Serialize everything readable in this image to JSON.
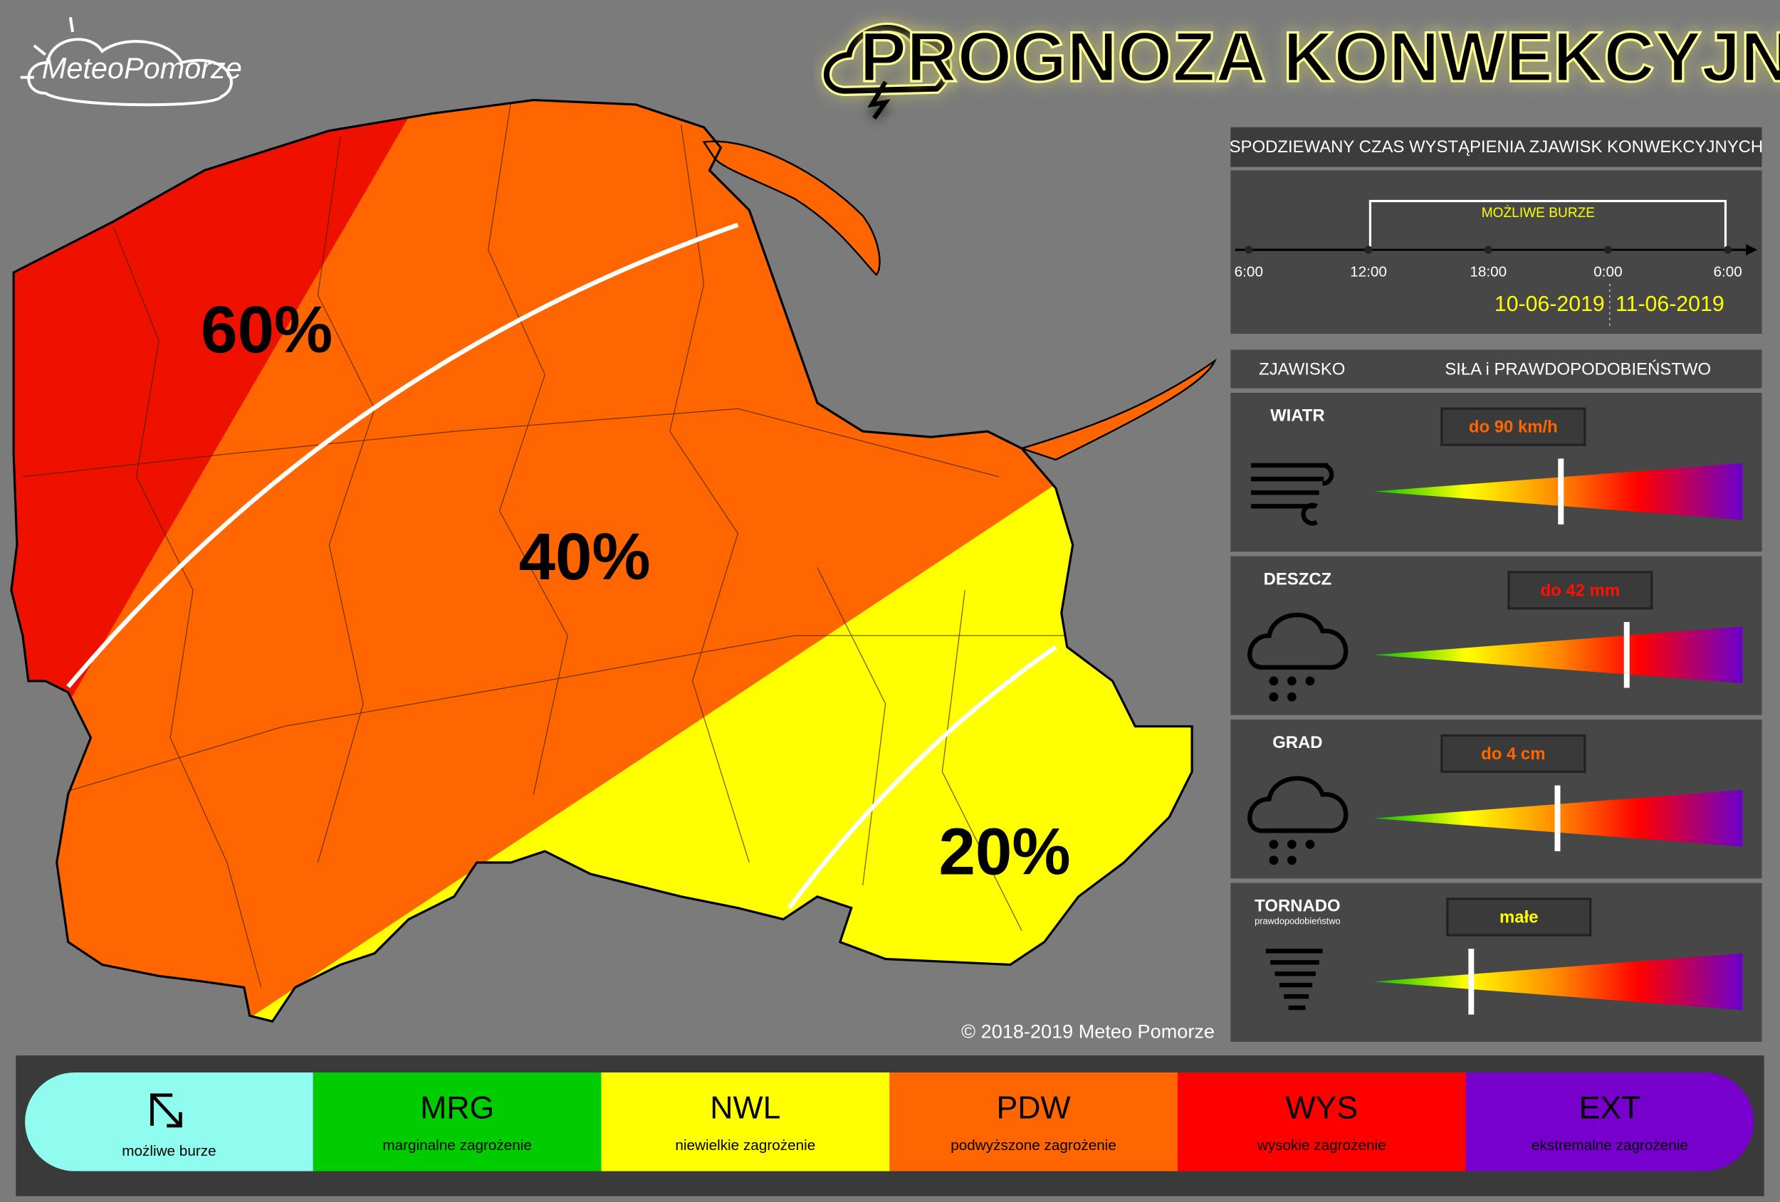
{
  "header": {
    "brand": "MeteoPomorze",
    "title": "PROGNOZA KONWEKCYJNA"
  },
  "map": {
    "labels": [
      "60%",
      "40%",
      "20%"
    ],
    "copyright": "© 2018-2019  Meteo Pomorze"
  },
  "timeline": {
    "title": "SPODZIEWANY CZAS WYSTĄPIENIA ZJAWISK KONWEKCYJNYCH",
    "period": "MOŻLIWE BURZE",
    "times": [
      "6:00",
      "12:00",
      "18:00",
      "0:00",
      "6:00"
    ],
    "dates": [
      "10-06-2019",
      "11-06-2019"
    ]
  },
  "phenomena": {
    "headers": [
      "ZJAWISKO",
      "SIŁA i PRAWDOPODOBIEŃSTWO"
    ],
    "rows": [
      {
        "name": "WIATR",
        "value": "do 90 km/h"
      },
      {
        "name": "DESZCZ",
        "value": "do 42 mm"
      },
      {
        "name": "GRAD",
        "value": "do 4 cm"
      },
      {
        "name": "TORNADO",
        "note": "prawdopodobieństwo",
        "value": "małe"
      }
    ]
  },
  "legend": [
    {
      "label": "możliwe burze"
    },
    {
      "code": "MRG",
      "label": "marginalne zagrożenie"
    },
    {
      "code": "NWL",
      "label": "niewielkie zagrożenie"
    },
    {
      "code": "PDW",
      "label": "podwyższone zagrożenie"
    },
    {
      "code": "WYS",
      "label": "wysokie zagrożenie"
    },
    {
      "code": "EXT",
      "label": "ekstremalne zagrożenie"
    }
  ]
}
